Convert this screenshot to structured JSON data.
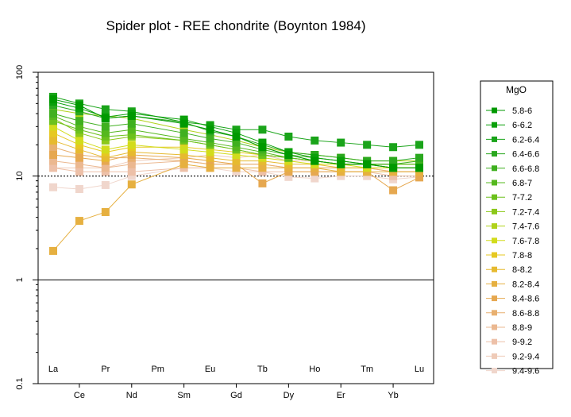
{
  "chart_data": {
    "type": "line",
    "title": "Spider plot - REE chondrite (Boynton 1984)",
    "xlabel": "",
    "ylabel": "",
    "y_scale": "log",
    "ylim": [
      0.1,
      100
    ],
    "y_ticks": [
      "0.1",
      "1",
      "10",
      "100"
    ],
    "reference_lines": [
      1,
      10
    ],
    "categories": [
      "La",
      "Ce",
      "Pr",
      "Nd",
      "Pm",
      "Sm",
      "Eu",
      "Gd",
      "Tb",
      "Dy",
      "Ho",
      "Er",
      "Tm",
      "Yb",
      "Lu"
    ],
    "legend": {
      "title": "MgO",
      "position": "right"
    },
    "series": [
      {
        "name": "5.8-6",
        "color": "#009900",
        "values": [
          55,
          48,
          36,
          38,
          null,
          32,
          28,
          24,
          19,
          16,
          14,
          13,
          13,
          12,
          12
        ]
      },
      {
        "name": "6-6.2",
        "color": "#0aa00a",
        "values": [
          52,
          45,
          37,
          40,
          null,
          35,
          30,
          26,
          21,
          17,
          15,
          14,
          13,
          12,
          12
        ]
      },
      {
        "name": "6.2-6.4",
        "color": "#1aa41a",
        "values": [
          58,
          50,
          44,
          42,
          null,
          33,
          31,
          28,
          28,
          24,
          22,
          21,
          20,
          19,
          20
        ]
      },
      {
        "name": "6.4-6.6",
        "color": "#2aa81f",
        "values": [
          48,
          42,
          36,
          38,
          null,
          33,
          27,
          24,
          20,
          17,
          16,
          15,
          14,
          14,
          15
        ]
      },
      {
        "name": "6.6-6.8",
        "color": "#3fb01f",
        "values": [
          40,
          34,
          30,
          32,
          null,
          26,
          23,
          21,
          18,
          16,
          15,
          14,
          13,
          13,
          14
        ]
      },
      {
        "name": "6.8-7",
        "color": "#55b81e",
        "values": [
          38,
          30,
          26,
          28,
          null,
          23,
          21,
          19,
          17,
          15,
          14,
          13,
          13,
          13,
          13
        ]
      },
      {
        "name": "7-7.2",
        "color": "#6cc11c",
        "values": [
          34,
          28,
          24,
          25,
          null,
          22,
          20,
          18,
          16,
          15,
          14,
          13,
          13,
          13,
          13
        ]
      },
      {
        "name": "7.2-7.4",
        "color": "#8cc81a",
        "values": [
          36,
          26,
          22,
          24,
          null,
          22,
          20,
          18,
          16,
          15,
          14,
          13,
          13,
          12,
          12
        ]
      },
      {
        "name": "7.4-7.6",
        "color": "#b0d21a",
        "values": [
          44,
          40,
          38,
          36,
          null,
          28,
          25,
          22,
          19,
          17,
          16,
          15,
          14,
          14,
          14
        ]
      },
      {
        "name": "7.6-7.8",
        "color": "#d2dc1c",
        "values": [
          30,
          22,
          18,
          20,
          null,
          18,
          17,
          16,
          15,
          14,
          13,
          13,
          12,
          12,
          12
        ]
      },
      {
        "name": "7.8-8",
        "color": "#e6c822",
        "values": [
          26,
          20,
          17,
          19,
          null,
          19,
          18,
          17,
          16,
          15,
          14,
          13,
          13,
          13,
          13
        ]
      },
      {
        "name": "8-8.2",
        "color": "#e6ba30",
        "values": [
          22,
          18,
          15,
          17,
          null,
          16,
          15,
          14,
          14,
          13,
          13,
          12,
          12,
          12,
          12
        ]
      },
      {
        "name": "8.2-8.4",
        "color": "#e6b040",
        "values": [
          1.9,
          3.7,
          4.5,
          8.3,
          null,
          13,
          12,
          12,
          12,
          12,
          12,
          11,
          11,
          11,
          11
        ]
      },
      {
        "name": "8.4-8.6",
        "color": "#e6a850",
        "values": [
          16,
          15,
          14,
          16,
          null,
          15,
          14,
          13,
          8.5,
          11,
          11,
          11,
          11,
          7.3,
          9.7
        ]
      },
      {
        "name": "8.6-8.8",
        "color": "#e8b070",
        "values": [
          19,
          16,
          15,
          15,
          null,
          14,
          13,
          13,
          13,
          12,
          12,
          12,
          12,
          11,
          11
        ]
      },
      {
        "name": "8.8-9",
        "color": "#ebb890",
        "values": [
          14,
          13,
          12,
          13,
          null,
          14,
          13,
          13,
          13,
          12,
          12,
          12,
          12,
          11,
          11
        ]
      },
      {
        "name": "9-9.2",
        "color": "#edc0a8",
        "values": [
          12,
          11,
          11,
          11,
          null,
          12,
          12,
          12,
          11,
          11,
          11,
          11,
          11,
          10,
          10
        ]
      },
      {
        "name": "9.2-9.4",
        "color": "#efcbb8",
        "values": [
          12,
          12,
          12,
          14,
          null,
          15,
          16,
          15,
          16,
          14,
          14,
          13,
          13,
          12,
          12
        ]
      },
      {
        "name": "9.4-9.6",
        "color": "#f0d6cc",
        "values": [
          7.8,
          7.5,
          8.2,
          10,
          null,
          12,
          12,
          11,
          11,
          9.8,
          9.5,
          10,
          10,
          9.3,
          9.8
        ]
      }
    ]
  }
}
